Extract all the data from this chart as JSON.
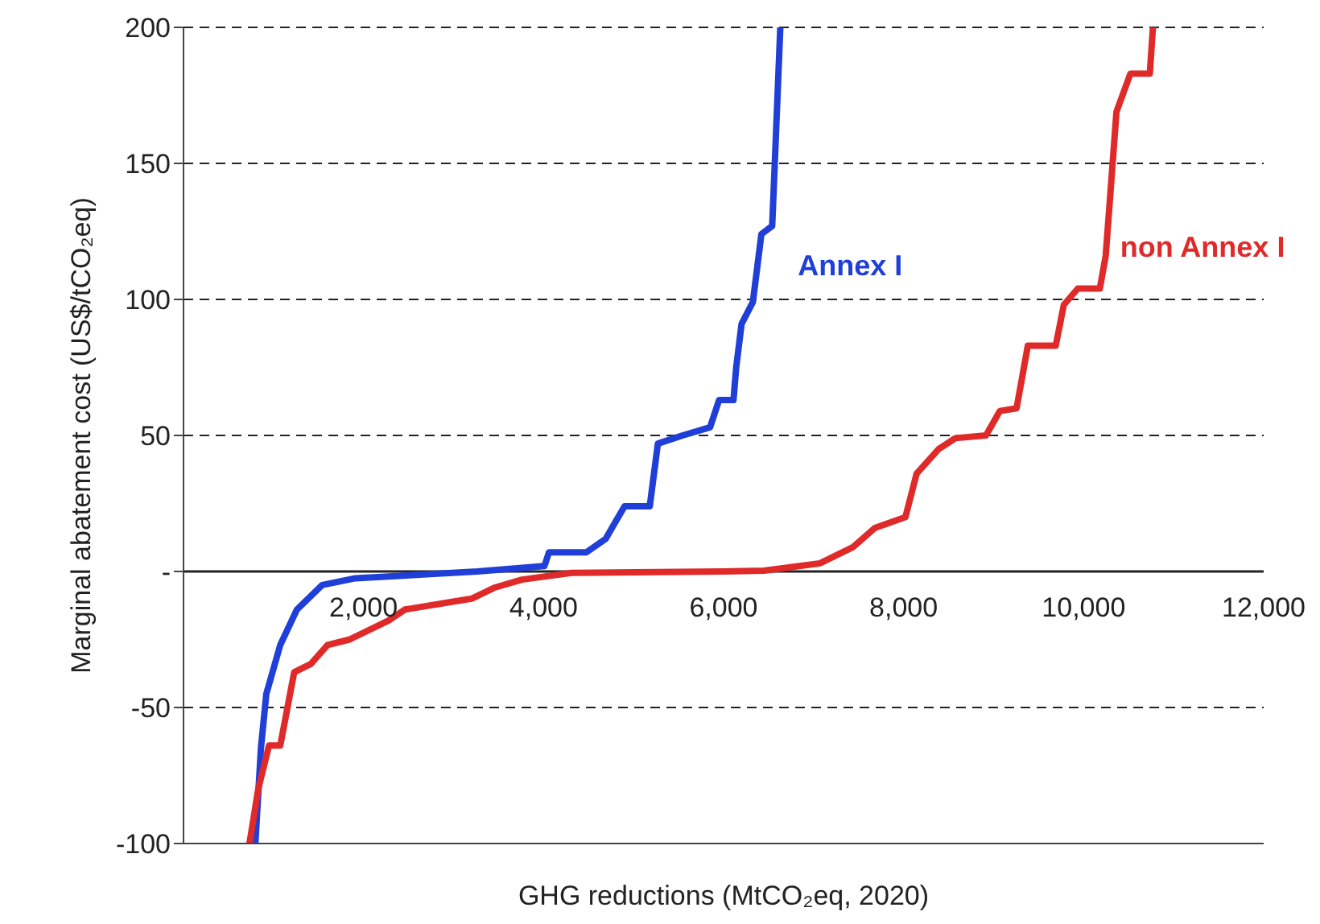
{
  "chart_data": {
    "type": "line",
    "xlabel": "GHG reductions (MtCO₂eq, 2020)",
    "ylabel": "Marginal abatement cost (US$/tCO₂eq)",
    "xlim": [
      0,
      12000
    ],
    "xticks": [
      {
        "value": 2000,
        "label": "2,000"
      },
      {
        "value": 4000,
        "label": "4,000"
      },
      {
        "value": 6000,
        "label": "6,000"
      },
      {
        "value": 8000,
        "label": "8,000"
      },
      {
        "value": 10000,
        "label": "10,000"
      },
      {
        "value": 12000,
        "label": "12,000"
      }
    ],
    "ylim": [
      -100,
      200
    ],
    "yticks": [
      -100,
      -50,
      {
        "value": 0,
        "label": "-"
      },
      50,
      100,
      150,
      200
    ],
    "grid": "y",
    "marker": "none",
    "line_style": "solid",
    "series": [
      {
        "name": "Annex I",
        "color": "#1f3fd8",
        "x": [
          798,
          860,
          920,
          1075,
          1260,
          1540,
          1910,
          3265,
          4010,
          4060,
          4475,
          4690,
          4900,
          5180,
          5270,
          5545,
          5850,
          5950,
          6110,
          6140,
          6200,
          6325,
          6420,
          6540,
          6570,
          6630
        ],
        "values": [
          -100,
          -65,
          -45,
          -27,
          -14,
          -5,
          -2.5,
          0,
          2,
          7,
          7,
          12,
          24,
          24,
          47,
          50,
          53,
          63,
          63,
          75,
          91,
          99,
          124,
          127,
          151,
          200
        ]
      },
      {
        "name": "non Annex I",
        "color": "#e02a2a",
        "x": [
          733,
          830,
          950,
          1075,
          1230,
          1415,
          1600,
          1845,
          2280,
          2460,
          3200,
          3450,
          3760,
          4310,
          6000,
          6450,
          7070,
          7440,
          7680,
          8020,
          8145,
          8390,
          8575,
          8915,
          9070,
          9255,
          9380,
          9690,
          9780,
          9935,
          10180,
          10245,
          10365,
          10520,
          10735,
          10770
        ],
        "values": [
          -100,
          -80,
          -64,
          -64,
          -37,
          -34,
          -27,
          -25,
          -18,
          -14,
          -10,
          -6,
          -3,
          -0.5,
          0,
          0.3,
          3,
          9,
          16,
          20,
          36,
          45,
          49,
          50,
          59,
          60,
          83,
          83,
          98,
          104,
          104,
          116,
          169,
          183,
          183,
          200
        ]
      }
    ]
  }
}
